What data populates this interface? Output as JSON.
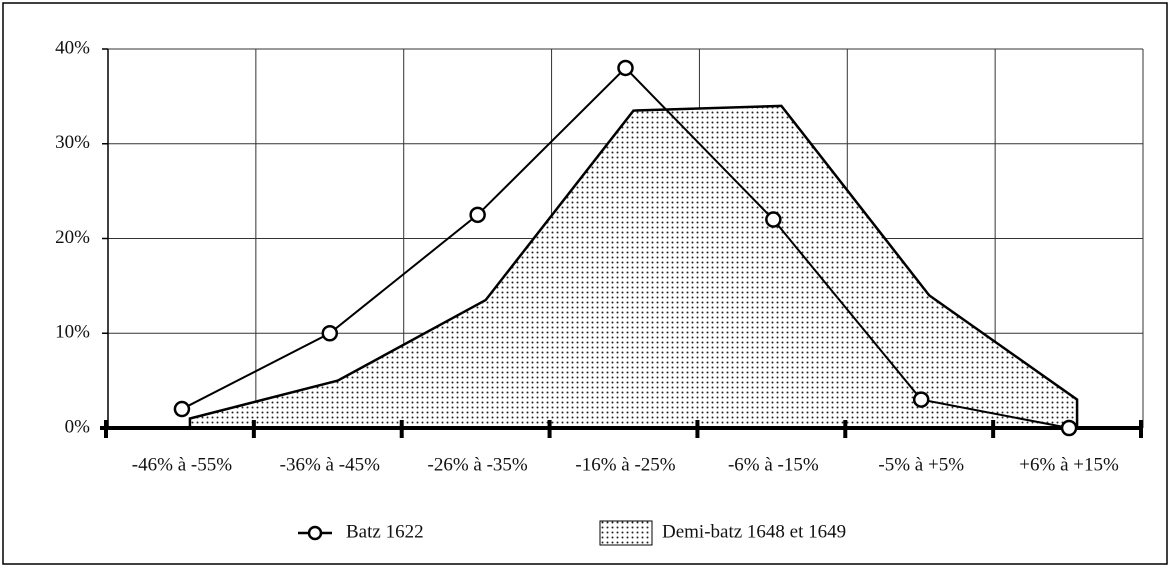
{
  "chart_data": {
    "type": "line",
    "categories": [
      "-46% à -55%",
      "-36% à -45%",
      "-26% à -35%",
      "-16% à -25%",
      "-6% à -15%",
      "-5% à +5%",
      "+6% à +15%"
    ],
    "series": [
      {
        "name": "Batz 1622",
        "type": "line",
        "color": "#000000",
        "values": [
          2,
          10,
          22.5,
          38,
          22,
          3,
          0
        ]
      },
      {
        "name": "Demi-batz 1648 et 1649",
        "type": "area",
        "color": "#000000",
        "values": [
          1,
          5,
          13.5,
          33.5,
          34,
          14,
          3
        ]
      }
    ],
    "ylim": [
      0,
      40
    ],
    "yticks": [
      {
        "value": 0,
        "label": "0%"
      },
      {
        "value": 10,
        "label": "10%"
      },
      {
        "value": 20,
        "label": "20%"
      },
      {
        "value": 30,
        "label": "30%"
      },
      {
        "value": 40,
        "label": "40%"
      }
    ],
    "grid": true,
    "legend": "bottom"
  }
}
